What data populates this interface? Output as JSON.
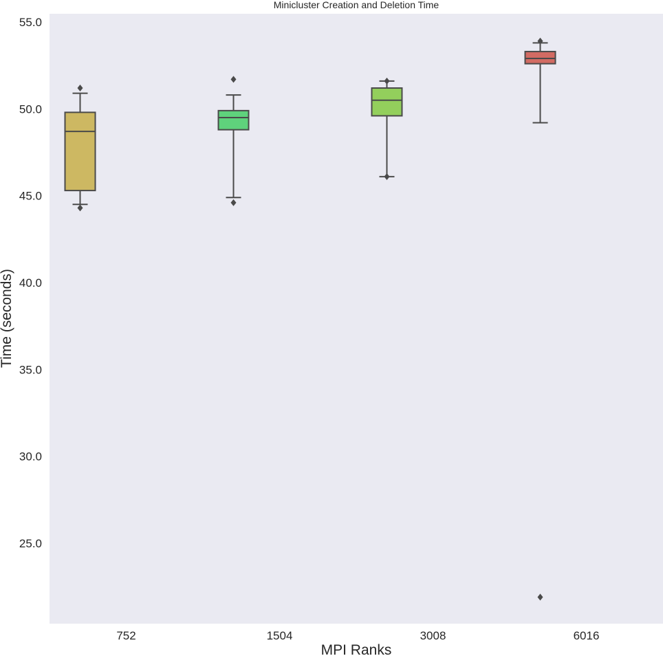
{
  "chart_data": {
    "type": "box",
    "title": "Minicluster Creation and Deletion Time",
    "xlabel": "MPI Ranks",
    "ylabel": "Time (seconds)",
    "ylim": [
      20.5,
      55.5
    ],
    "yticks": [
      25.0,
      30.0,
      35.0,
      40.0,
      45.0,
      50.0,
      55.0
    ],
    "grid": false,
    "categories": [
      "752",
      "1504",
      "3008",
      "6016"
    ],
    "boxes": [
      {
        "category": "752",
        "color": "#cdb862",
        "whisker_low": 44.5,
        "q1": 45.3,
        "median": 48.7,
        "q3": 49.8,
        "whisker_high": 50.9,
        "outliers": [
          44.3,
          51.2
        ]
      },
      {
        "category": "1504",
        "color": "#5fd27c",
        "whisker_low": 44.9,
        "q1": 48.8,
        "median": 49.5,
        "q3": 49.9,
        "whisker_high": 50.8,
        "outliers": [
          44.6,
          51.7
        ]
      },
      {
        "category": "3008",
        "color": "#93cf5c",
        "whisker_low": 46.1,
        "q1": 49.6,
        "median": 50.5,
        "q3": 51.2,
        "whisker_high": 51.6,
        "outliers": [
          46.1,
          51.6
        ]
      },
      {
        "category": "6016",
        "color": "#d26b63",
        "whisker_low": 49.2,
        "q1": 52.6,
        "median": 52.9,
        "q3": 53.3,
        "whisker_high": 53.8,
        "outliers": [
          53.9,
          21.9
        ]
      }
    ],
    "colors": {
      "background": "#eaeaf2",
      "box_edge": "#4a4a4a",
      "text": "#262626"
    }
  }
}
